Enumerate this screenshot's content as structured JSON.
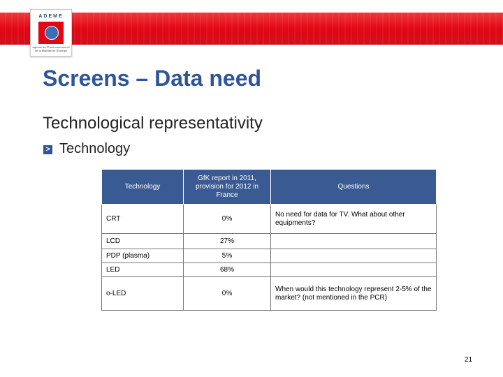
{
  "logo": {
    "name": "ADEME",
    "tagline": "Agence de l'Environnement et de la Maîtrise de l'Energie"
  },
  "slide": {
    "title": "Screens – Data need",
    "subtitle": "Technological representativity",
    "bullet_icon": "chevron-right-icon",
    "bullet_glyph": ">",
    "bullet": "Technology",
    "page_number": "21"
  },
  "table": {
    "headers": [
      "Technology",
      "GfK report in 2011, provision for 2012 in France",
      "Questions"
    ],
    "rows": [
      {
        "technology": "CRT",
        "share": "0%",
        "question": "No need for data for TV. What about other equipments?"
      },
      {
        "technology": "LCD",
        "share": "27%",
        "question": ""
      },
      {
        "technology": "PDP (plasma)",
        "share": "5%",
        "question": ""
      },
      {
        "technology": "LED",
        "share": "68%",
        "question": ""
      },
      {
        "technology": "o-LED",
        "share": "0%",
        "question": "When would this technology represent 2-5% of the market? (not mentioned in the PCR)"
      }
    ]
  },
  "colors": {
    "accent_red": "#e30613",
    "title_blue": "#2e5597",
    "header_blue": "#3a5a94"
  }
}
